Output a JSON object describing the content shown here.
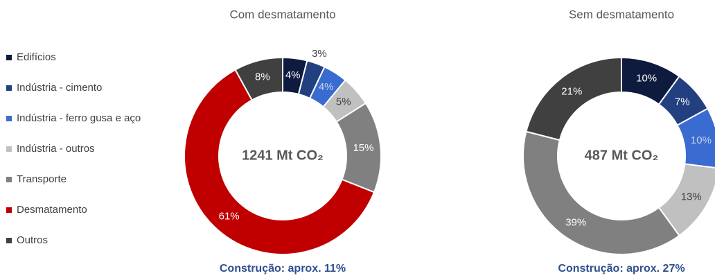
{
  "chart_data": [
    {
      "type": "donut",
      "title": "Com desmatamento",
      "categories": [
        "Edifícios",
        "Indústria - cimento",
        "Indústria - ferro gusa e aço",
        "Indústria - outros",
        "Transporte",
        "Desmatamento",
        "Outros"
      ],
      "values": [
        4,
        3,
        4,
        5,
        15,
        61,
        8
      ],
      "value_labels": [
        "4%",
        "3%",
        "4%",
        "5%",
        "15%",
        "61%",
        "8%"
      ],
      "colors": [
        "#0e1a3e",
        "#223f7f",
        "#3a6bd0",
        "#c0c0c0",
        "#808080",
        "#c00000",
        "#404040"
      ],
      "center_label": "1241 Mt CO₂",
      "footer": "Construção: aprox. 11%"
    },
    {
      "type": "donut",
      "title": "Sem desmatamento",
      "categories": [
        "Edifícios",
        "Indústria - cimento",
        "Indústria - ferro gusa e aço",
        "Indústria - outros",
        "Transporte",
        "Outros"
      ],
      "values": [
        10,
        7,
        10,
        13,
        39,
        21
      ],
      "value_labels": [
        "10%",
        "7%",
        "10%",
        "13%",
        "39%",
        "21%"
      ],
      "colors": [
        "#0e1a3e",
        "#223f7f",
        "#3a6bd0",
        "#c0c0c0",
        "#808080",
        "#404040"
      ],
      "center_label": "487 Mt CO₂",
      "footer": "Construção: aprox. 27%"
    }
  ]
}
